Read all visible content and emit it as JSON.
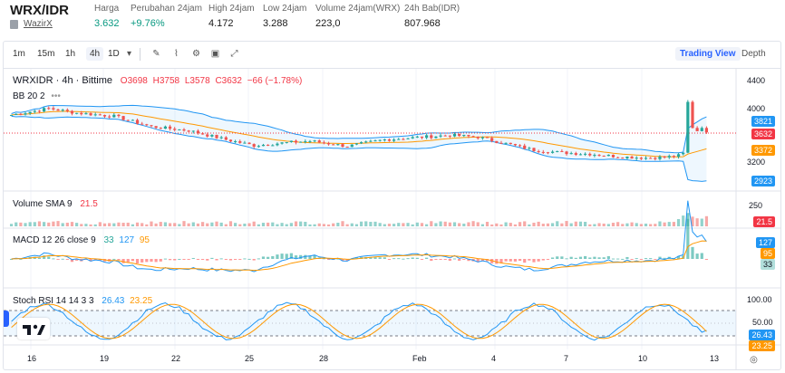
{
  "ticker": {
    "pair": "WRX/IDR",
    "exchange": "WazirX",
    "stats": [
      {
        "label": "Harga",
        "value": "3.632",
        "color": "#1a1a1a"
      },
      {
        "label": "Perubahan 24jam",
        "value": "+9.76%",
        "color": "#089981"
      },
      {
        "label": "High 24jam",
        "value": "4.172",
        "color": "#1a1a1a"
      },
      {
        "label": "Low 24jam",
        "value": "3.288",
        "color": "#1a1a1a"
      },
      {
        "label": "Volume 24jam(WRX)",
        "value": "223,0",
        "color": "#1a1a1a"
      },
      {
        "label": "24h Bab(IDR)",
        "value": "807.968",
        "color": "#1a1a1a"
      }
    ]
  },
  "toolbar": {
    "timeframes": [
      "1m",
      "15m",
      "1h",
      "4h",
      "1D"
    ],
    "active_timeframe": "4h",
    "views": [
      "Trading View",
      "Depth"
    ],
    "active_view": "Trading View"
  },
  "chart": {
    "symbol_line": "WRXIDR · 4h · Bittime",
    "ohlc": {
      "o": "O3698",
      "h": "H3758",
      "l": "L3578",
      "c": "C3632",
      "chg": "−66 (−1.78%)"
    },
    "bb_label": "BB 20 2",
    "volume_label": "Volume SMA 9",
    "volume_value": "21.5",
    "macd_label": "MACD 12 26 close 9",
    "macd_values": [
      "33",
      "127",
      "95"
    ],
    "stoch_label": "Stoch RSI 14 14 3 3",
    "stoch_values": [
      "26.43",
      "23.25"
    ],
    "price_axis": [
      "4400",
      "4000",
      "3600",
      "3200",
      "2800"
    ],
    "price_tags": [
      {
        "value": "3821",
        "color": "#2196f3"
      },
      {
        "value": "3632",
        "color": "#f23645"
      },
      {
        "value": "3372",
        "color": "#ff9800"
      },
      {
        "value": "2923",
        "color": "#2196f3"
      }
    ],
    "volume_axis": [
      "250"
    ],
    "volume_tag": "21.5",
    "macd_tags": [
      {
        "value": "127",
        "color": "#2196f3"
      },
      {
        "value": "95",
        "color": "#ff9800"
      },
      {
        "value": "33",
        "color": "#26a69a"
      }
    ],
    "stoch_axis": [
      "100.00",
      "50.00"
    ],
    "stoch_tags": [
      {
        "value": "26.43",
        "color": "#2196f3"
      },
      {
        "value": "23.25",
        "color": "#ff9800"
      }
    ],
    "x_labels": [
      "16",
      "19",
      "22",
      "25",
      "28",
      "Feb",
      "4",
      "7",
      "10",
      "13"
    ],
    "colors": {
      "up": "#26a69a",
      "down": "#ef5350",
      "bb": "#2196f3",
      "basis": "#ff9800"
    }
  }
}
